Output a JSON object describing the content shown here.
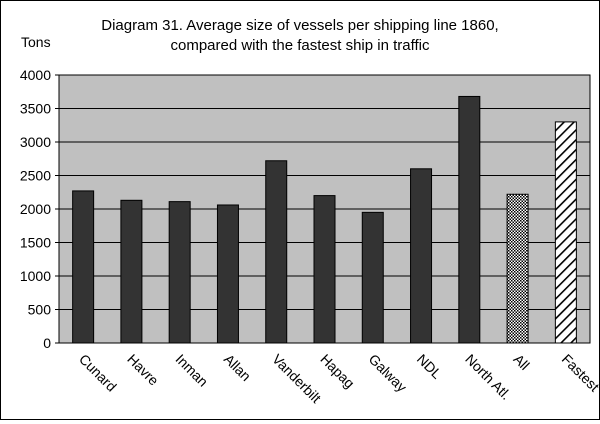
{
  "chart_data": {
    "type": "bar",
    "title_lines": [
      "Diagram 31. Average size of vessels per shipping line 1860,",
      "compared with the fastest ship in traffic"
    ],
    "ylabel": "Tons",
    "xlabel": "",
    "ylim": [
      0,
      4000
    ],
    "yticks": [
      0,
      500,
      1000,
      1500,
      2000,
      2500,
      3000,
      3500,
      4000
    ],
    "grid": "horizontal",
    "categories": [
      "Cunard",
      "Havre",
      "Inman",
      "Allan",
      "Vanderbilt",
      "Hapag",
      "Galway",
      "NDL",
      "North Atl.",
      "All",
      "Fastest"
    ],
    "values": [
      2270,
      2130,
      2110,
      2060,
      2720,
      2200,
      1950,
      2600,
      3680,
      2220,
      3300
    ],
    "bar_styles": [
      "solid",
      "solid",
      "solid",
      "solid",
      "solid",
      "solid",
      "solid",
      "solid",
      "solid",
      "crosshatch",
      "diagonal"
    ],
    "colors": {
      "plot_background": "#c0c0c0",
      "bar_fill": "#333333",
      "bar_stroke": "#000000",
      "gridline": "#000000",
      "pattern_background": "#ffffff"
    }
  }
}
